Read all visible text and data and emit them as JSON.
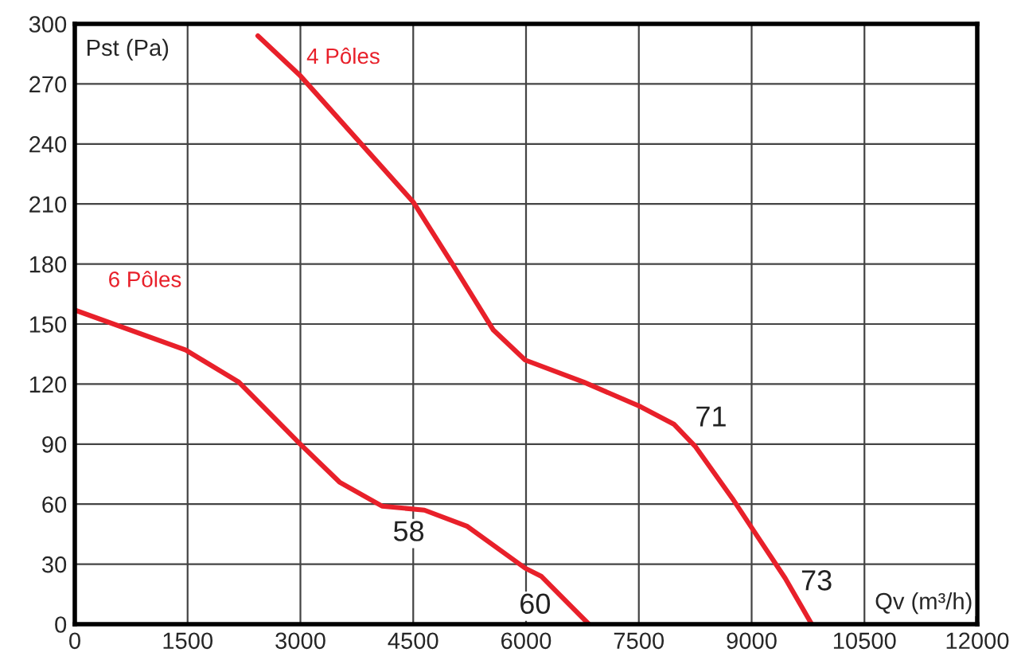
{
  "chart_data": {
    "type": "line",
    "xlabel": "Qv (m³/h)",
    "ylabel": "Pst (Pa)",
    "xlim": [
      0,
      12000
    ],
    "ylim": [
      0,
      300
    ],
    "xticks": [
      0,
      1500,
      3000,
      4500,
      6000,
      7500,
      9000,
      10500,
      12000
    ],
    "yticks": [
      0,
      30,
      60,
      90,
      120,
      150,
      180,
      210,
      240,
      270,
      300
    ],
    "grid": true,
    "legend": false,
    "marker": "none",
    "line_style": "solid",
    "series": [
      {
        "name": "4 Pôles",
        "color": "#e8202a",
        "x": [
          2434,
          3000,
          4500,
          5072,
          5566,
          5989,
          6766,
          7506,
          7965,
          8247,
          8741,
          9022,
          9446,
          9799
        ],
        "values": [
          294,
          274,
          211,
          177,
          147,
          132,
          121,
          109,
          100,
          89,
          63,
          47,
          23,
          0
        ]
      },
      {
        "name": "6 Pôles",
        "color": "#e8202a",
        "x": [
          0,
          1475,
          2180,
          2998,
          3520,
          4085,
          4649,
          5213,
          5989,
          6201,
          6836
        ],
        "values": [
          157,
          137,
          121,
          90,
          71,
          59,
          57,
          49,
          28,
          24,
          0
        ]
      }
    ],
    "annotations": [
      "58",
      "60",
      "71",
      "73"
    ]
  }
}
